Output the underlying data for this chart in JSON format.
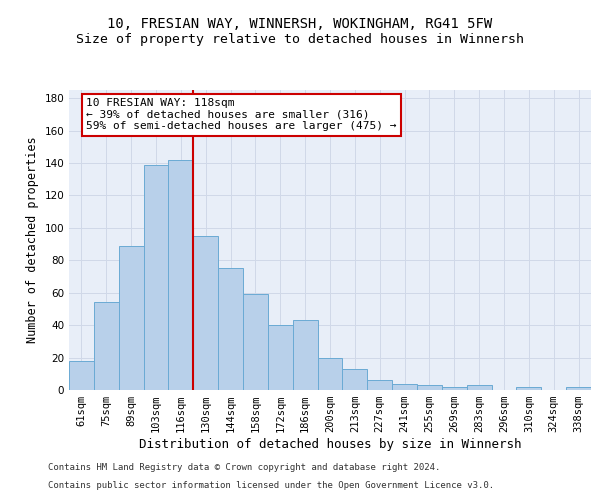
{
  "title1": "10, FRESIAN WAY, WINNERSH, WOKINGHAM, RG41 5FW",
  "title2": "Size of property relative to detached houses in Winnersh",
  "xlabel": "Distribution of detached houses by size in Winnersh",
  "ylabel": "Number of detached properties",
  "categories": [
    "61sqm",
    "75sqm",
    "89sqm",
    "103sqm",
    "116sqm",
    "130sqm",
    "144sqm",
    "158sqm",
    "172sqm",
    "186sqm",
    "200sqm",
    "213sqm",
    "227sqm",
    "241sqm",
    "255sqm",
    "269sqm",
    "283sqm",
    "296sqm",
    "310sqm",
    "324sqm",
    "338sqm"
  ],
  "values": [
    18,
    54,
    89,
    139,
    142,
    95,
    75,
    59,
    40,
    43,
    20,
    13,
    6,
    4,
    3,
    2,
    3,
    0,
    2,
    0,
    2
  ],
  "bar_color": "#b8d0ea",
  "bar_edge_color": "#6aaad4",
  "grid_color": "#d0d8e8",
  "bg_color": "#e8eef8",
  "annotation_text": "10 FRESIAN WAY: 118sqm\n← 39% of detached houses are smaller (316)\n59% of semi-detached houses are larger (475) →",
  "annotation_box_color": "#ffffff",
  "annotation_box_edge_color": "#cc0000",
  "vline_x": 4.5,
  "vline_color": "#cc0000",
  "ylim": [
    0,
    185
  ],
  "yticks": [
    0,
    20,
    40,
    60,
    80,
    100,
    120,
    140,
    160,
    180
  ],
  "footer_line1": "Contains HM Land Registry data © Crown copyright and database right 2024.",
  "footer_line2": "Contains public sector information licensed under the Open Government Licence v3.0.",
  "title1_fontsize": 10,
  "title2_fontsize": 9.5,
  "xlabel_fontsize": 9,
  "ylabel_fontsize": 8.5,
  "tick_fontsize": 7.5,
  "annotation_fontsize": 8,
  "footer_fontsize": 6.5
}
